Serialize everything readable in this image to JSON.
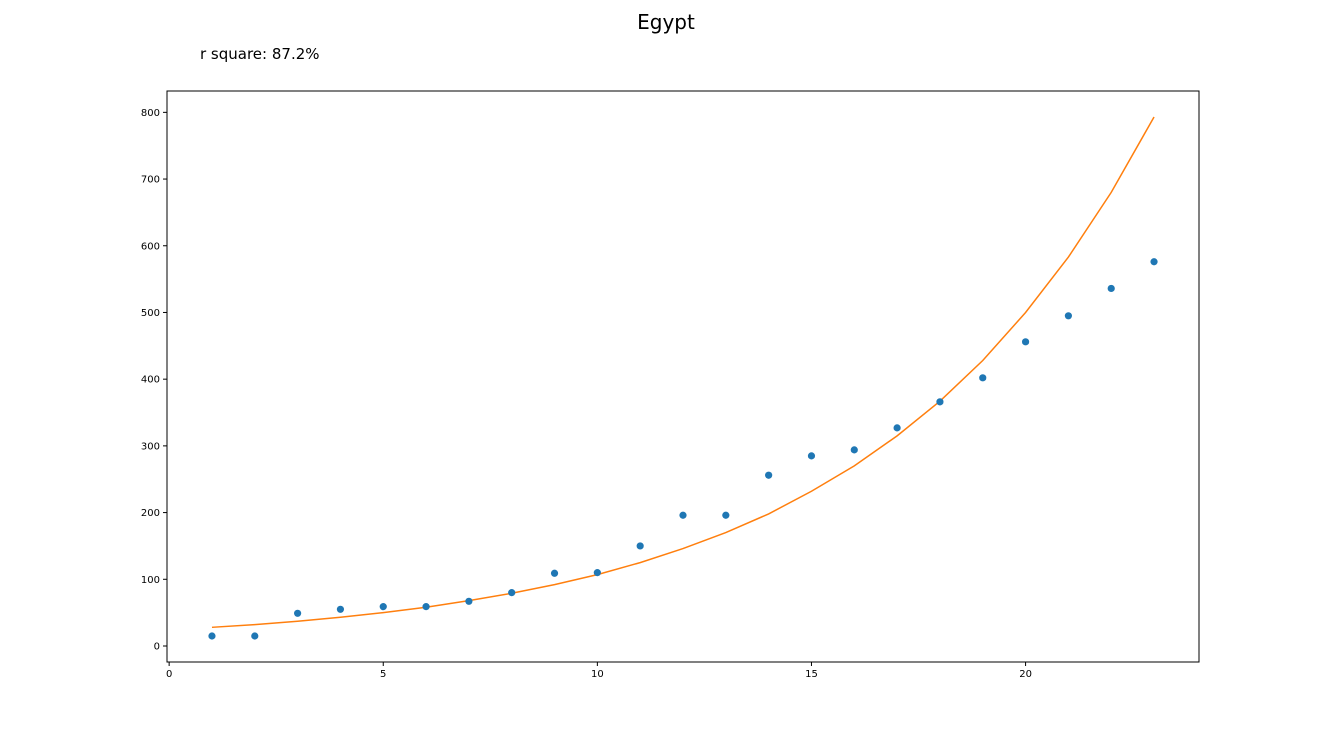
{
  "chart_data": {
    "type": "scatter",
    "title": "Egypt",
    "annotation": "r square: 87.2%",
    "xlabel": "",
    "ylabel": "",
    "xlim": [
      -0.05,
      24.05
    ],
    "ylim": [
      -24,
      832
    ],
    "x_ticks": [
      0,
      5,
      10,
      15,
      20
    ],
    "y_ticks": [
      0,
      100,
      200,
      300,
      400,
      500,
      600,
      700,
      800
    ],
    "grid": false,
    "series": [
      {
        "kind": "scatter",
        "color": "#1f77b4",
        "x": [
          1,
          2,
          3,
          4,
          5,
          6,
          7,
          8,
          9,
          10,
          11,
          12,
          13,
          14,
          15,
          16,
          17,
          18,
          19,
          20,
          21,
          22,
          23
        ],
        "y": [
          15,
          15,
          49,
          55,
          59,
          59,
          67,
          80,
          109,
          110,
          150,
          196,
          196,
          256,
          285,
          294,
          327,
          366,
          402,
          456,
          495,
          536,
          576
        ]
      },
      {
        "kind": "line",
        "color": "#ff7f0e",
        "x": [
          1,
          2,
          3,
          4,
          5,
          6,
          7,
          8,
          9,
          10,
          11,
          12,
          13,
          14,
          15,
          16,
          17,
          18,
          19,
          20,
          21,
          22,
          23
        ],
        "y": [
          28,
          32,
          37,
          43,
          50,
          58,
          68,
          79,
          92,
          107,
          125,
          146,
          170,
          198,
          232,
          270,
          315,
          367,
          428,
          500,
          583,
          680,
          793
        ]
      }
    ]
  }
}
